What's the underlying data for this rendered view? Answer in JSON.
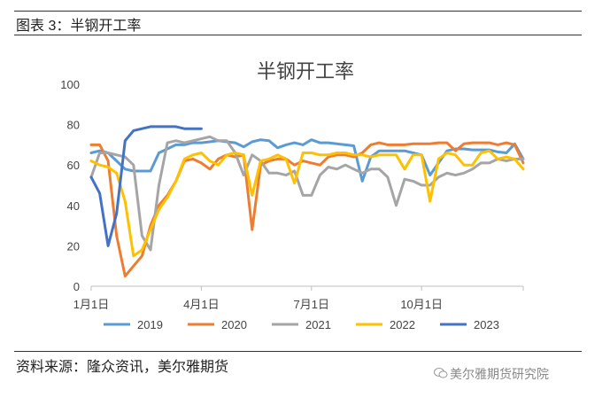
{
  "figure": {
    "caption": "图表 3：半钢开工率",
    "source": "资料来源：隆众资讯，美尔雅期货",
    "watermark": "美尔雅期货研究院"
  },
  "chart_data": {
    "type": "line",
    "title": "半钢开工率",
    "ylim": [
      0,
      100
    ],
    "yticks": [
      0,
      20,
      40,
      60,
      80,
      100
    ],
    "x_axis": {
      "min": 1,
      "max": 52,
      "tick_weeks": [
        1,
        14,
        27,
        40
      ],
      "tick_labels": [
        "1月1日",
        "4月1日",
        "7月1日",
        "10月1日"
      ]
    },
    "grid": false,
    "legend": "bottom",
    "series": [
      {
        "name": "2019",
        "color": "#5B9BD5",
        "x": [
          1,
          2,
          3,
          4,
          5,
          6,
          7,
          8,
          9,
          10,
          11,
          12,
          13,
          14,
          15,
          16,
          17,
          18,
          19,
          20,
          21,
          22,
          23,
          24,
          25,
          26,
          27,
          28,
          29,
          30,
          31,
          32,
          33,
          34,
          35,
          36,
          37,
          38,
          39,
          40,
          41,
          42,
          43,
          44,
          45,
          46,
          47,
          48,
          49,
          50,
          51,
          52
        ],
        "y": [
          66,
          67,
          66,
          62,
          58,
          57,
          57,
          57,
          66,
          68,
          70,
          70,
          71,
          71,
          71.5,
          72,
          71.5,
          71,
          69,
          71.5,
          72.5,
          72,
          68.5,
          70,
          71,
          70,
          72.5,
          71,
          71,
          70.5,
          70,
          69.5,
          52,
          64,
          67,
          67,
          67,
          67,
          66,
          65,
          55,
          61,
          67,
          68,
          68,
          67.5,
          67.5,
          67.5,
          66.5,
          66,
          70.5,
          63
        ]
      },
      {
        "name": "2020",
        "color": "#ED7D31",
        "x": [
          1,
          2,
          3,
          4,
          5,
          6,
          7,
          8,
          9,
          10,
          11,
          12,
          13,
          14,
          15,
          16,
          17,
          18,
          19,
          20,
          21,
          22,
          23,
          24,
          25,
          26,
          27,
          28,
          29,
          30,
          31,
          32,
          33,
          34,
          35,
          36,
          37,
          38,
          39,
          40,
          41,
          42,
          43,
          44,
          45,
          46,
          47,
          48,
          49,
          50,
          51,
          52
        ],
        "y": [
          70,
          70,
          62,
          25,
          5,
          10,
          15,
          30,
          40,
          45,
          52,
          62,
          63,
          61,
          58,
          63,
          65,
          64,
          65,
          28,
          60,
          62,
          63,
          63,
          60,
          62,
          61,
          60,
          64,
          65,
          65,
          64,
          66,
          70,
          71,
          70,
          70,
          70,
          70.5,
          70.5,
          70.5,
          71,
          71,
          67,
          70.5,
          71,
          71,
          71,
          70,
          71,
          70,
          61
        ]
      },
      {
        "name": "2021",
        "color": "#A5A5A5",
        "x": [
          1,
          2,
          3,
          4,
          5,
          6,
          7,
          8,
          9,
          10,
          11,
          12,
          13,
          14,
          15,
          16,
          17,
          18,
          19,
          20,
          21,
          22,
          23,
          24,
          25,
          26,
          27,
          28,
          29,
          30,
          31,
          32,
          33,
          34,
          35,
          36,
          37,
          38,
          39,
          40,
          41,
          42,
          43,
          44,
          45,
          46,
          47,
          48,
          49,
          50,
          51,
          52
        ],
        "y": [
          54,
          66,
          66,
          65,
          64,
          60,
          25,
          18,
          50,
          71,
          72,
          71,
          72,
          73,
          74,
          72,
          72,
          66,
          55,
          65,
          62,
          56,
          56,
          55,
          57,
          45,
          45,
          55,
          59,
          58,
          60,
          58,
          56,
          58,
          58,
          54,
          40,
          53,
          52,
          50,
          50,
          54,
          56,
          55,
          56,
          58,
          61,
          61,
          63,
          62,
          63,
          63
        ]
      },
      {
        "name": "2022",
        "color": "#FFC000",
        "x": [
          1,
          2,
          3,
          4,
          5,
          6,
          7,
          8,
          9,
          10,
          11,
          12,
          13,
          14,
          15,
          16,
          17,
          18,
          19,
          20,
          21,
          22,
          23,
          24,
          25,
          26,
          27,
          28,
          29,
          30,
          31,
          32,
          33,
          34,
          35,
          36,
          37,
          38,
          39,
          40,
          41,
          42,
          43,
          44,
          45,
          46,
          47,
          48,
          49,
          50,
          51,
          52
        ],
        "y": [
          62,
          60,
          59,
          56,
          42,
          15,
          18,
          28,
          38,
          44,
          52,
          63,
          65,
          66,
          62,
          60,
          65,
          66,
          65,
          45,
          62,
          63,
          65,
          63,
          51,
          66,
          66,
          65,
          65,
          66,
          66,
          65,
          65,
          64,
          65,
          65,
          65,
          58,
          65,
          65,
          42,
          63,
          66,
          65,
          60,
          60,
          66,
          67,
          63,
          64,
          63,
          58
        ]
      },
      {
        "name": "2023",
        "color": "#4472C4",
        "x": [
          1,
          2,
          3,
          4,
          5,
          6,
          7,
          8,
          9,
          10,
          11,
          12,
          13,
          14
        ],
        "y": [
          54,
          46,
          20,
          36,
          72,
          77,
          78,
          79,
          79,
          79,
          79,
          78,
          78,
          78
        ]
      }
    ]
  }
}
